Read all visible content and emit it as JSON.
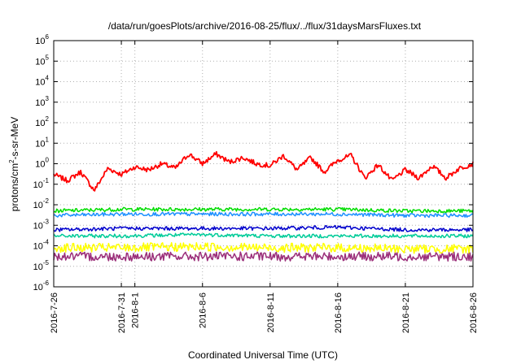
{
  "chart_data": {
    "type": "line",
    "title": "/data/run/goesPlots/archive/2016-08-25/flux/../flux/31daysMarsFluxes.txt",
    "xlabel": "Coordinated Universal Time (UTC)",
    "ylabel": {
      "prefix": "protons/cm",
      "sup": "2",
      "suffix": "-s-sr-MeV"
    },
    "yscale": "log",
    "ylim": [
      1e-06,
      1000000.0
    ],
    "xlim": [
      "2016-07-26",
      "2016-08-26"
    ],
    "grid": true,
    "legend": "none",
    "x_ticks": [
      "2016-7-26",
      "2016-7-31",
      "2016-8-1",
      "2016-8-6",
      "2016-8-11",
      "2016-8-16",
      "2016-8-21",
      "2016-8-26"
    ],
    "y_ticks": [
      {
        "base": "10",
        "exp": "-6"
      },
      {
        "base": "10",
        "exp": "-5"
      },
      {
        "base": "10",
        "exp": "-4"
      },
      {
        "base": "10",
        "exp": "-3"
      },
      {
        "base": "10",
        "exp": "-2"
      },
      {
        "base": "10",
        "exp": "-1"
      },
      {
        "base": "10",
        "exp": "0"
      },
      {
        "base": "10",
        "exp": "1"
      },
      {
        "base": "10",
        "exp": "2"
      },
      {
        "base": "10",
        "exp": "3"
      },
      {
        "base": "10",
        "exp": "4"
      },
      {
        "base": "10",
        "exp": "5"
      },
      {
        "base": "10",
        "exp": "6"
      }
    ],
    "series": [
      {
        "color": "#ff0000",
        "x": [
          "2016-07-26",
          "2016-07-27",
          "2016-07-28",
          "2016-07-29",
          "2016-07-30",
          "2016-07-31",
          "2016-08-01",
          "2016-08-02",
          "2016-08-03",
          "2016-08-04",
          "2016-08-05",
          "2016-08-06",
          "2016-08-07",
          "2016-08-08",
          "2016-08-09",
          "2016-08-10",
          "2016-08-11",
          "2016-08-12",
          "2016-08-13",
          "2016-08-14",
          "2016-08-15",
          "2016-08-16",
          "2016-08-17",
          "2016-08-18",
          "2016-08-19",
          "2016-08-20",
          "2016-08-21",
          "2016-08-22",
          "2016-08-23",
          "2016-08-24",
          "2016-08-25",
          "2016-08-26"
        ],
        "values": [
          0.3,
          0.15,
          0.4,
          0.05,
          0.6,
          0.3,
          0.7,
          0.5,
          1.0,
          0.6,
          3.0,
          1.0,
          3.0,
          1.2,
          2.0,
          1.0,
          0.8,
          2.5,
          0.5,
          2.0,
          0.4,
          1.5,
          2.5,
          0.2,
          0.9,
          0.15,
          0.5,
          0.2,
          0.8,
          0.2,
          0.6,
          1.0
        ]
      },
      {
        "color": "#00dd00",
        "x": [
          "2016-07-26",
          "2016-07-31",
          "2016-08-06",
          "2016-08-11",
          "2016-08-16",
          "2016-08-21",
          "2016-08-26"
        ],
        "values": [
          0.005,
          0.006,
          0.006,
          0.006,
          0.006,
          0.005,
          0.005
        ]
      },
      {
        "color": "#1e90ff",
        "x": [
          "2016-07-26",
          "2016-07-31",
          "2016-08-06",
          "2016-08-11",
          "2016-08-16",
          "2016-08-21",
          "2016-08-26"
        ],
        "values": [
          0.003,
          0.0035,
          0.0035,
          0.0035,
          0.0035,
          0.003,
          0.003
        ]
      },
      {
        "color": "#0000cc",
        "x": [
          "2016-07-26",
          "2016-07-31",
          "2016-08-06",
          "2016-08-11",
          "2016-08-16",
          "2016-08-21",
          "2016-08-26"
        ],
        "values": [
          0.0006,
          0.0007,
          0.0007,
          0.0007,
          0.0008,
          0.0006,
          0.0006
        ]
      },
      {
        "color": "#00cc99",
        "x": [
          "2016-07-26",
          "2016-07-31",
          "2016-08-06",
          "2016-08-11",
          "2016-08-16",
          "2016-08-21",
          "2016-08-26"
        ],
        "values": [
          0.0003,
          0.0003,
          0.00035,
          0.0003,
          0.0003,
          0.0003,
          0.0003
        ]
      },
      {
        "color": "#ffff00",
        "x": [
          "2016-07-26",
          "2016-07-31",
          "2016-08-06",
          "2016-08-11",
          "2016-08-16",
          "2016-08-21",
          "2016-08-26"
        ],
        "values": [
          8e-05,
          8e-05,
          9e-05,
          8e-05,
          8e-05,
          7e-05,
          7e-05
        ]
      },
      {
        "color": "#9b2f7a",
        "x": [
          "2016-07-26",
          "2016-07-31",
          "2016-08-06",
          "2016-08-11",
          "2016-08-16",
          "2016-08-21",
          "2016-08-26"
        ],
        "values": [
          3e-05,
          3e-05,
          3e-05,
          3e-05,
          3e-05,
          3e-05,
          3e-05
        ]
      }
    ]
  }
}
